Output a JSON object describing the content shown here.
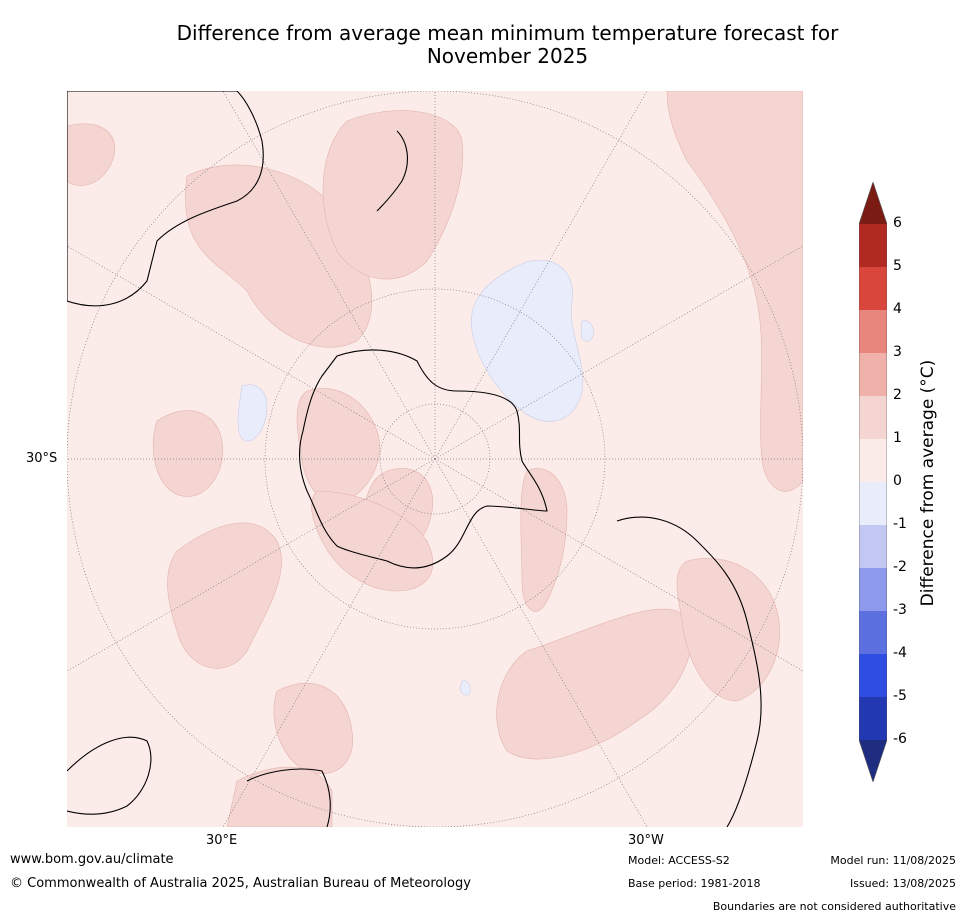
{
  "title_line1": "Difference from average mean minimum temperature forecast for",
  "title_line2": "November 2025",
  "map": {
    "projection": "south-polar-stereographic",
    "lat_label": "30°S",
    "lon_labels": [
      "30°E",
      "30°W"
    ],
    "land_outline_color": "#000000"
  },
  "colorbar": {
    "title": "Difference from average (°C)",
    "ticks": [
      "6",
      "5",
      "4",
      "3",
      "2",
      "1",
      "0",
      "-1",
      "-2",
      "-3",
      "-4",
      "-5",
      "-6"
    ],
    "colors": {
      "over_max": "#7a1c14",
      "5_to_6": "#b02a22",
      "4_to_5": "#d9473c",
      "3_to_4": "#e8857c",
      "2_to_3": "#f0b1aa",
      "1_to_2": "#f5d5d2",
      "0_to_1": "#fcece9",
      "-1_to_0": "#e9ecfb",
      "-2_to_-1": "#c2c8f2",
      "-3_to_-2": "#8d99ea",
      "-4_to_-3": "#5c70e0",
      "-5_to_-4": "#2f4de0",
      "-6_to_-5": "#2339b3",
      "under_min": "#1f2d80"
    }
  },
  "footer": {
    "website": "www.bom.gov.au/climate",
    "copyright": "© Commonwealth of Australia 2025, Australian Bureau of Meteorology",
    "model": "Model: ACCESS-S2",
    "base_period": "Base period: 1981-2018",
    "model_run": "Model run: 11/08/2025",
    "issued": "Issued: 13/08/2025",
    "disclaimer": "Boundaries are not considered authoritative"
  }
}
